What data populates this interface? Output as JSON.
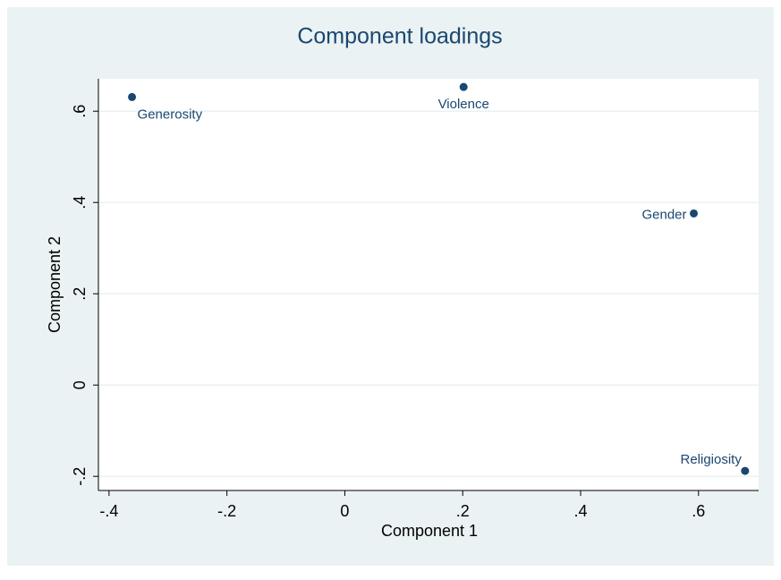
{
  "chart_data": {
    "type": "scatter",
    "title": "Component loadings",
    "x_label": "Component 1",
    "y_label": "Component 2",
    "x": [
      -0.361,
      0.2015,
      0.592,
      0.679
    ],
    "values": [
      0.631,
      0.653,
      0.376,
      -0.188
    ],
    "labels": [
      "Generosity",
      "Violence",
      "Gender",
      "Religiosity"
    ],
    "color": "#1a476f",
    "xlim": [
      -0.418,
      0.702
    ],
    "ylim": [
      -0.231,
      0.671
    ],
    "xticks": [
      {
        "value": -0.4,
        "label": "-.4"
      },
      {
        "value": -0.2,
        "label": "-.2"
      },
      0,
      {
        "value": 0.2,
        "label": ".2"
      },
      {
        "value": 0.4,
        "label": ".4"
      },
      {
        "value": 0.6,
        "label": ".6"
      }
    ],
    "yticks": [
      {
        "value": -0.2,
        "label": "-.2"
      },
      0,
      {
        "value": 0.2,
        "label": ".2"
      },
      {
        "value": 0.4,
        "label": ".4"
      },
      {
        "value": 0.6,
        "label": ".6"
      }
    ],
    "grid": true
  }
}
